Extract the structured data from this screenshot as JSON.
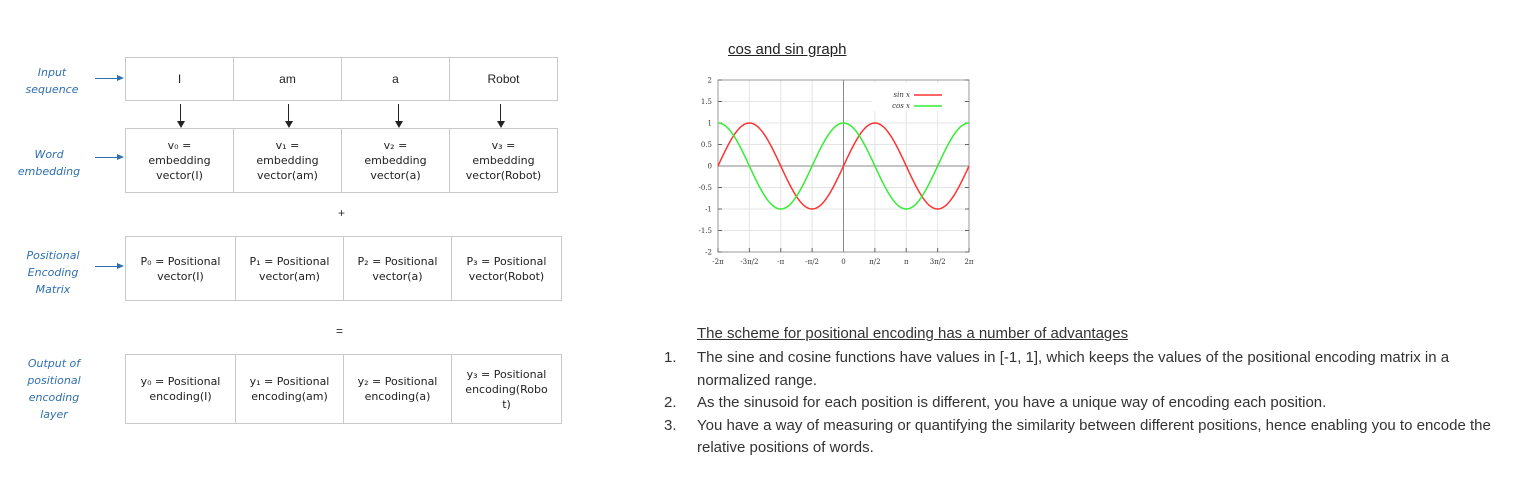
{
  "labels": {
    "input": [
      "Input",
      "sequence"
    ],
    "word_embedding": [
      "Word",
      "embedding"
    ],
    "positional": [
      "Positional",
      "Encoding",
      "Matrix"
    ],
    "output": [
      "Output of",
      "positional",
      "encoding",
      "layer"
    ]
  },
  "input_row": [
    "I",
    "am",
    "a",
    "Robot"
  ],
  "embedding_row": [
    "v₀ =\nembedding\nvector(I)",
    "v₁ =\nembedding\nvector(am)",
    "v₂ =\nembedding\nvector(a)",
    "v₃ =\nembedding\nvector(Robot)"
  ],
  "plus_sign": "+",
  "positional_row": [
    "P₀ = Positional\nvector(I)",
    "P₁ = Positional\nvector(am)",
    "P₂ = Positional\nvector(a)",
    "P₃ = Positional\nvector(Robot)"
  ],
  "equals_sign": "=",
  "output_row": [
    "y₀ = Positional\nencoding(I)",
    "y₁ = Positional\nencoding(am)",
    "y₂ = Positional\nencoding(a)",
    "y₃ = Positional\nencoding(Robo\nt)"
  ],
  "graph": {
    "title": "cos and sin graph",
    "y_ticks": [
      "2",
      "1.5",
      "1",
      "0.5",
      "0",
      "-0.5",
      "-1",
      "-1.5",
      "-2"
    ],
    "x_ticks": [
      "-2π",
      "-3π/2",
      "-π",
      "-π/2",
      "0",
      "π/2",
      "π",
      "3π/2",
      "2π"
    ],
    "legend": [
      {
        "name": "sin x",
        "color": "#ff3333"
      },
      {
        "name": "cos x",
        "color": "#33ee33"
      }
    ]
  },
  "advantages": {
    "title": "The scheme for positional encoding has a number of advantages",
    "items": [
      {
        "num": "1.",
        "text": "The sine and cosine functions have values in [-1, 1], which keeps the values of the positional encoding matrix in a normalized range."
      },
      {
        "num": "2.",
        "text": "As the sinusoid for each position is different, you have a unique way of encoding each position."
      },
      {
        "num": "3.",
        "text": "You have a way of measuring or quantifying the similarity between different positions, hence enabling you to encode the relative positions of words."
      }
    ]
  }
}
